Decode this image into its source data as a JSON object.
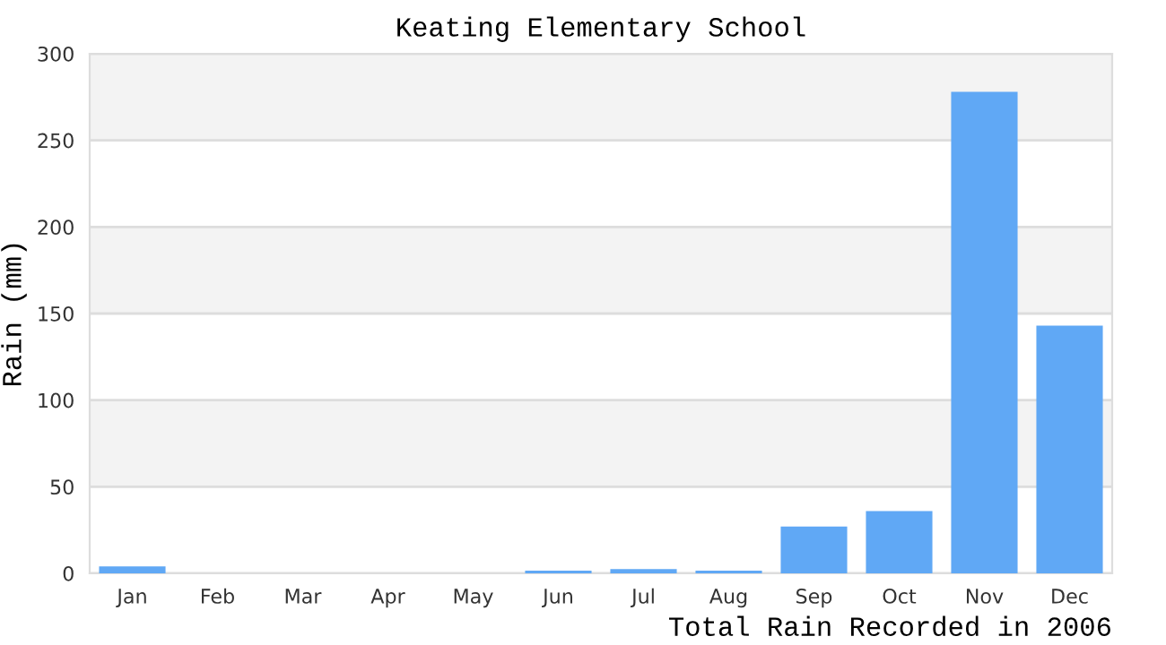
{
  "chart_data": {
    "type": "bar",
    "title": "Keating Elementary School",
    "xlabel": "Total Rain Recorded in 2006",
    "ylabel": "Rain (mm)",
    "categories": [
      "Jan",
      "Feb",
      "Mar",
      "Apr",
      "May",
      "Jun",
      "Jul",
      "Aug",
      "Sep",
      "Oct",
      "Nov",
      "Dec"
    ],
    "values": [
      4,
      0,
      0,
      0,
      0,
      1.5,
      2.5,
      1.5,
      27,
      36,
      278,
      143
    ],
    "color": "#60a8f5",
    "ylim": [
      0,
      300
    ],
    "yticks": [
      0,
      50,
      100,
      150,
      200,
      250,
      300
    ],
    "grid": "y"
  }
}
